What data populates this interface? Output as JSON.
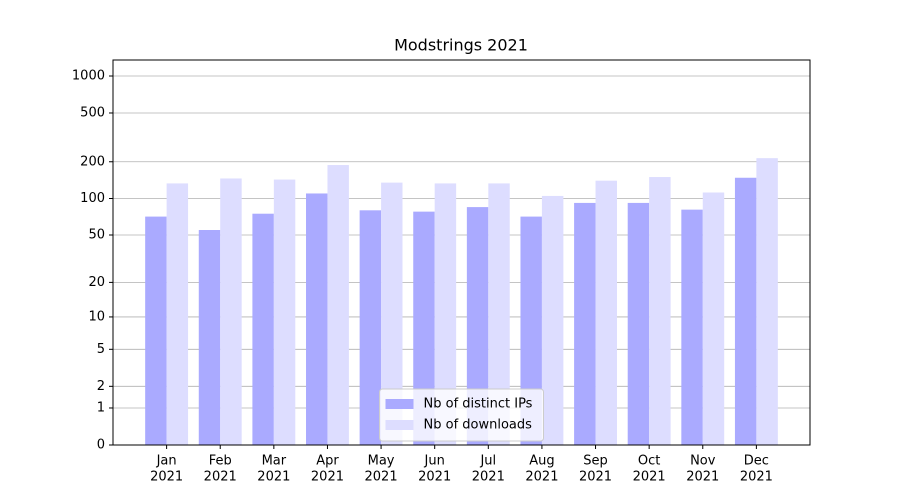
{
  "chart_data": {
    "type": "bar",
    "title": "Modstrings 2021",
    "categories": [
      [
        "Jan",
        "2021"
      ],
      [
        "Feb",
        "2021"
      ],
      [
        "Mar",
        "2021"
      ],
      [
        "Apr",
        "2021"
      ],
      [
        "May",
        "2021"
      ],
      [
        "Jun",
        "2021"
      ],
      [
        "Jul",
        "2021"
      ],
      [
        "Aug",
        "2021"
      ],
      [
        "Sep",
        "2021"
      ],
      [
        "Oct",
        "2021"
      ],
      [
        "Nov",
        "2021"
      ],
      [
        "Dec",
        "2021"
      ]
    ],
    "series": [
      {
        "name": "Nb of distinct IPs",
        "color": "#aaaaff",
        "values": [
          71,
          55,
          75,
          110,
          80,
          78,
          85,
          71,
          92,
          92,
          81,
          148
        ]
      },
      {
        "name": "Nb of downloads",
        "color": "#ddddff",
        "values": [
          133,
          146,
          143,
          188,
          135,
          133,
          133,
          105,
          140,
          150,
          112,
          214
        ]
      }
    ],
    "yscale": "log1p",
    "ylim": [
      0,
      1350
    ],
    "yticks": [
      0,
      1,
      2,
      5,
      10,
      20,
      50,
      100,
      200,
      500,
      1000
    ],
    "grid": true,
    "legend": "lower center"
  }
}
